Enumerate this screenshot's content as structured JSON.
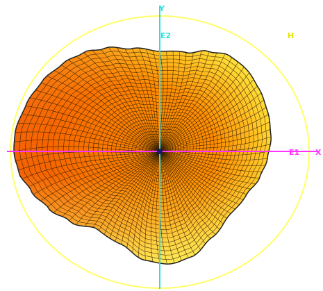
{
  "labels": {
    "y_axis": "Y",
    "x_axis": "X",
    "e2": "E2",
    "e1": "E1",
    "h": "H"
  },
  "colors": {
    "bounding_circle": "#ffff66",
    "x_axis": "#ff33ff",
    "y_axis": "#33dddd",
    "h_label": "#e6e600",
    "mesh_line": "#2a1a00",
    "outline": "#222222",
    "surface_dark": "#f04a00",
    "surface_mid": "#ff8c00",
    "surface_light": "#ffe23a",
    "surface_highlight": "#fff76b",
    "center": "#1a1a66"
  },
  "icons": {
    "center_marker": "origin-point-icon"
  }
}
